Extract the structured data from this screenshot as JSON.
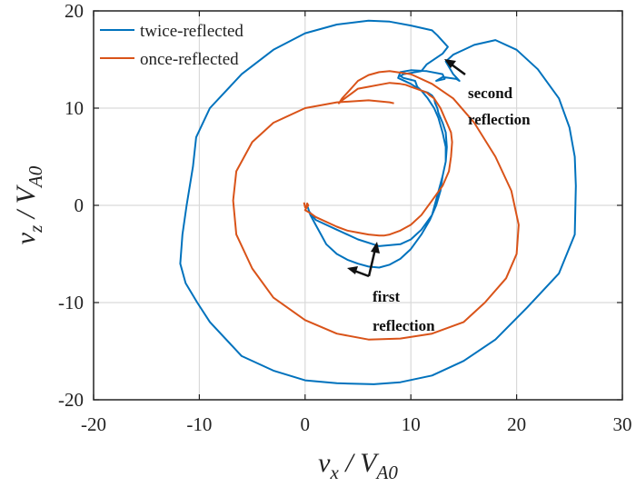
{
  "chart_data": {
    "type": "line",
    "title": "",
    "xlabel": {
      "main": "v",
      "sub": "x",
      "rest": " / V",
      "sub2": "A0"
    },
    "ylabel": {
      "main": "v",
      "sub": "z",
      "rest": " / V",
      "sub2": "A0"
    },
    "xlim": [
      -20,
      30
    ],
    "ylim": [
      -20,
      20
    ],
    "xticks": [
      -20,
      -10,
      0,
      10,
      20,
      30
    ],
    "yticks": [
      -20,
      -10,
      0,
      10,
      20
    ],
    "xtick_labels": [
      "-20",
      "-10",
      "0",
      "10",
      "20",
      "30"
    ],
    "ytick_labels": [
      "-20",
      "-10",
      "0",
      "10",
      "20"
    ],
    "grid": true,
    "legend_position": "top-left",
    "series": [
      {
        "name": "twice-reflected",
        "color": "#0072BD",
        "x": [
          0.2,
          0.5,
          1.0,
          1.5,
          2.0,
          3.0,
          4.0,
          5.0,
          6.0,
          7.0,
          8.0,
          9.0,
          10.0,
          11.0,
          11.8,
          12.4,
          12.8,
          13.0,
          13.3,
          13.4,
          13.3,
          13.0,
          12.8,
          12.6,
          12.5,
          12.3,
          12.2,
          12.0,
          11.6,
          11.0,
          10.6,
          10.4,
          9.3,
          9.0,
          9.3,
          11.0,
          11.5,
          13.0,
          13.5,
          12.5,
          12.0,
          10.0,
          8.0,
          6.0,
          3.0,
          0.0,
          -3.0,
          -6.0,
          -9.0,
          -10.3,
          -10.6,
          -11.2,
          -11.6,
          -11.8,
          -11.3,
          -10.2,
          -9.0,
          -6.0,
          -3.0,
          0.0,
          3.0,
          6.5,
          9.0,
          12.0,
          15.0,
          18.0,
          21.0,
          24.0,
          25.5,
          25.6,
          25.5,
          25.0,
          24.0,
          22.0,
          20.0,
          18.0,
          16.0,
          14.0,
          13.3,
          14.0,
          14.6,
          14.3,
          13.0,
          12.4,
          13.2,
          13.0,
          11.5,
          10.0,
          9.0,
          8.8,
          10.0,
          11.0,
          11.6,
          12.2,
          12.6,
          13.0,
          13.3,
          13.3,
          13.0,
          12.5,
          12.0,
          11.0,
          10.0,
          9.0,
          7.0,
          5.0,
          3.0,
          1.0,
          0.3
        ],
        "y": [
          0.0,
          -1.0,
          -2.0,
          -3.0,
          -4.0,
          -5.0,
          -5.6,
          -6.0,
          -6.3,
          -6.4,
          -6.1,
          -5.5,
          -4.5,
          -3.0,
          -1.5,
          0.0,
          1.5,
          3.0,
          4.5,
          6.0,
          7.5,
          8.5,
          9.0,
          9.5,
          10.0,
          10.5,
          11.0,
          11.3,
          11.6,
          11.8,
          12.2,
          12.8,
          13.1,
          13.3,
          13.5,
          13.8,
          14.5,
          15.6,
          16.3,
          17.5,
          18.0,
          18.5,
          18.9,
          19.0,
          18.6,
          17.7,
          16.0,
          13.5,
          10.0,
          7.0,
          4.0,
          0.0,
          -3.0,
          -6.0,
          -8.0,
          -10.0,
          -12.0,
          -15.5,
          -17.0,
          -18.0,
          -18.3,
          -18.4,
          -18.2,
          -17.5,
          -16.0,
          -13.8,
          -10.5,
          -7.0,
          -3.0,
          2.0,
          5.0,
          8.0,
          11.0,
          14.0,
          16.0,
          17.0,
          16.5,
          15.5,
          14.8,
          13.5,
          12.8,
          13.0,
          13.2,
          12.8,
          13.0,
          13.5,
          13.8,
          13.9,
          13.7,
          13.1,
          12.5,
          11.8,
          11.0,
          10.0,
          9.0,
          7.5,
          6.0,
          4.5,
          3.0,
          1.0,
          -1.0,
          -2.5,
          -3.5,
          -4.0,
          -4.2,
          -3.5,
          -2.5,
          -1.5,
          -0.5
        ]
      },
      {
        "name": "once-reflected",
        "color": "#D95319",
        "x": [
          -0.1,
          0.0,
          0.1,
          0.2,
          0.3,
          0.1,
          0.0,
          0.5,
          1.0,
          2.0,
          3.0,
          4.0,
          5.0,
          6.0,
          7.0,
          7.5,
          8.0,
          9.0,
          10.0,
          11.0,
          12.0,
          13.0,
          13.6,
          13.8,
          13.9,
          13.8,
          13.6,
          13.4,
          13.2,
          13.0,
          12.8,
          12.5,
          12.2,
          11.8,
          11.5,
          11.0,
          10.5,
          10.0,
          9.5,
          9.0,
          8.0,
          7.0,
          6.0,
          5.0,
          4.5,
          4.0,
          3.5,
          3.2,
          3.5,
          4.0,
          4.5,
          5.0,
          6.0,
          7.0,
          8.0,
          10.0,
          12.0,
          14.0,
          16.0,
          18.0,
          19.5,
          20.2,
          20.0,
          19.0,
          17.0,
          15.0,
          12.0,
          9.0,
          6.0,
          3.0,
          0.0,
          -3.0,
          -5.0,
          -6.5,
          -6.8,
          -6.5,
          -5.0,
          -3.0,
          0.0,
          3.0,
          6.0,
          8.0,
          8.4
        ],
        "y": [
          0.3,
          -0.2,
          -0.2,
          0.2,
          0.0,
          -0.3,
          -0.5,
          -0.8,
          -1.2,
          -1.7,
          -2.2,
          -2.6,
          -2.8,
          -3.0,
          -3.1,
          -3.1,
          -3.0,
          -2.6,
          -2.0,
          -1.0,
          0.5,
          2.0,
          3.5,
          5.0,
          6.5,
          7.5,
          8.0,
          8.5,
          9.0,
          9.5,
          10.0,
          10.5,
          11.0,
          11.3,
          11.6,
          11.8,
          12.0,
          12.2,
          12.4,
          12.5,
          12.6,
          12.4,
          12.2,
          12.0,
          11.6,
          11.2,
          10.8,
          10.5,
          11.0,
          11.6,
          12.2,
          12.8,
          13.4,
          13.7,
          13.8,
          13.5,
          12.5,
          11.0,
          8.5,
          5.0,
          1.5,
          -2.0,
          -5.0,
          -7.5,
          -10.0,
          -12.0,
          -13.2,
          -13.7,
          -13.8,
          -13.2,
          -11.8,
          -9.5,
          -6.5,
          -3.0,
          0.5,
          3.5,
          6.5,
          8.5,
          10.0,
          10.6,
          10.8,
          10.6,
          10.5
        ]
      }
    ],
    "annotations": [
      {
        "lines": [
          "second",
          "reflection"
        ]
      },
      {
        "lines": [
          "first",
          "reflection"
        ]
      }
    ]
  }
}
